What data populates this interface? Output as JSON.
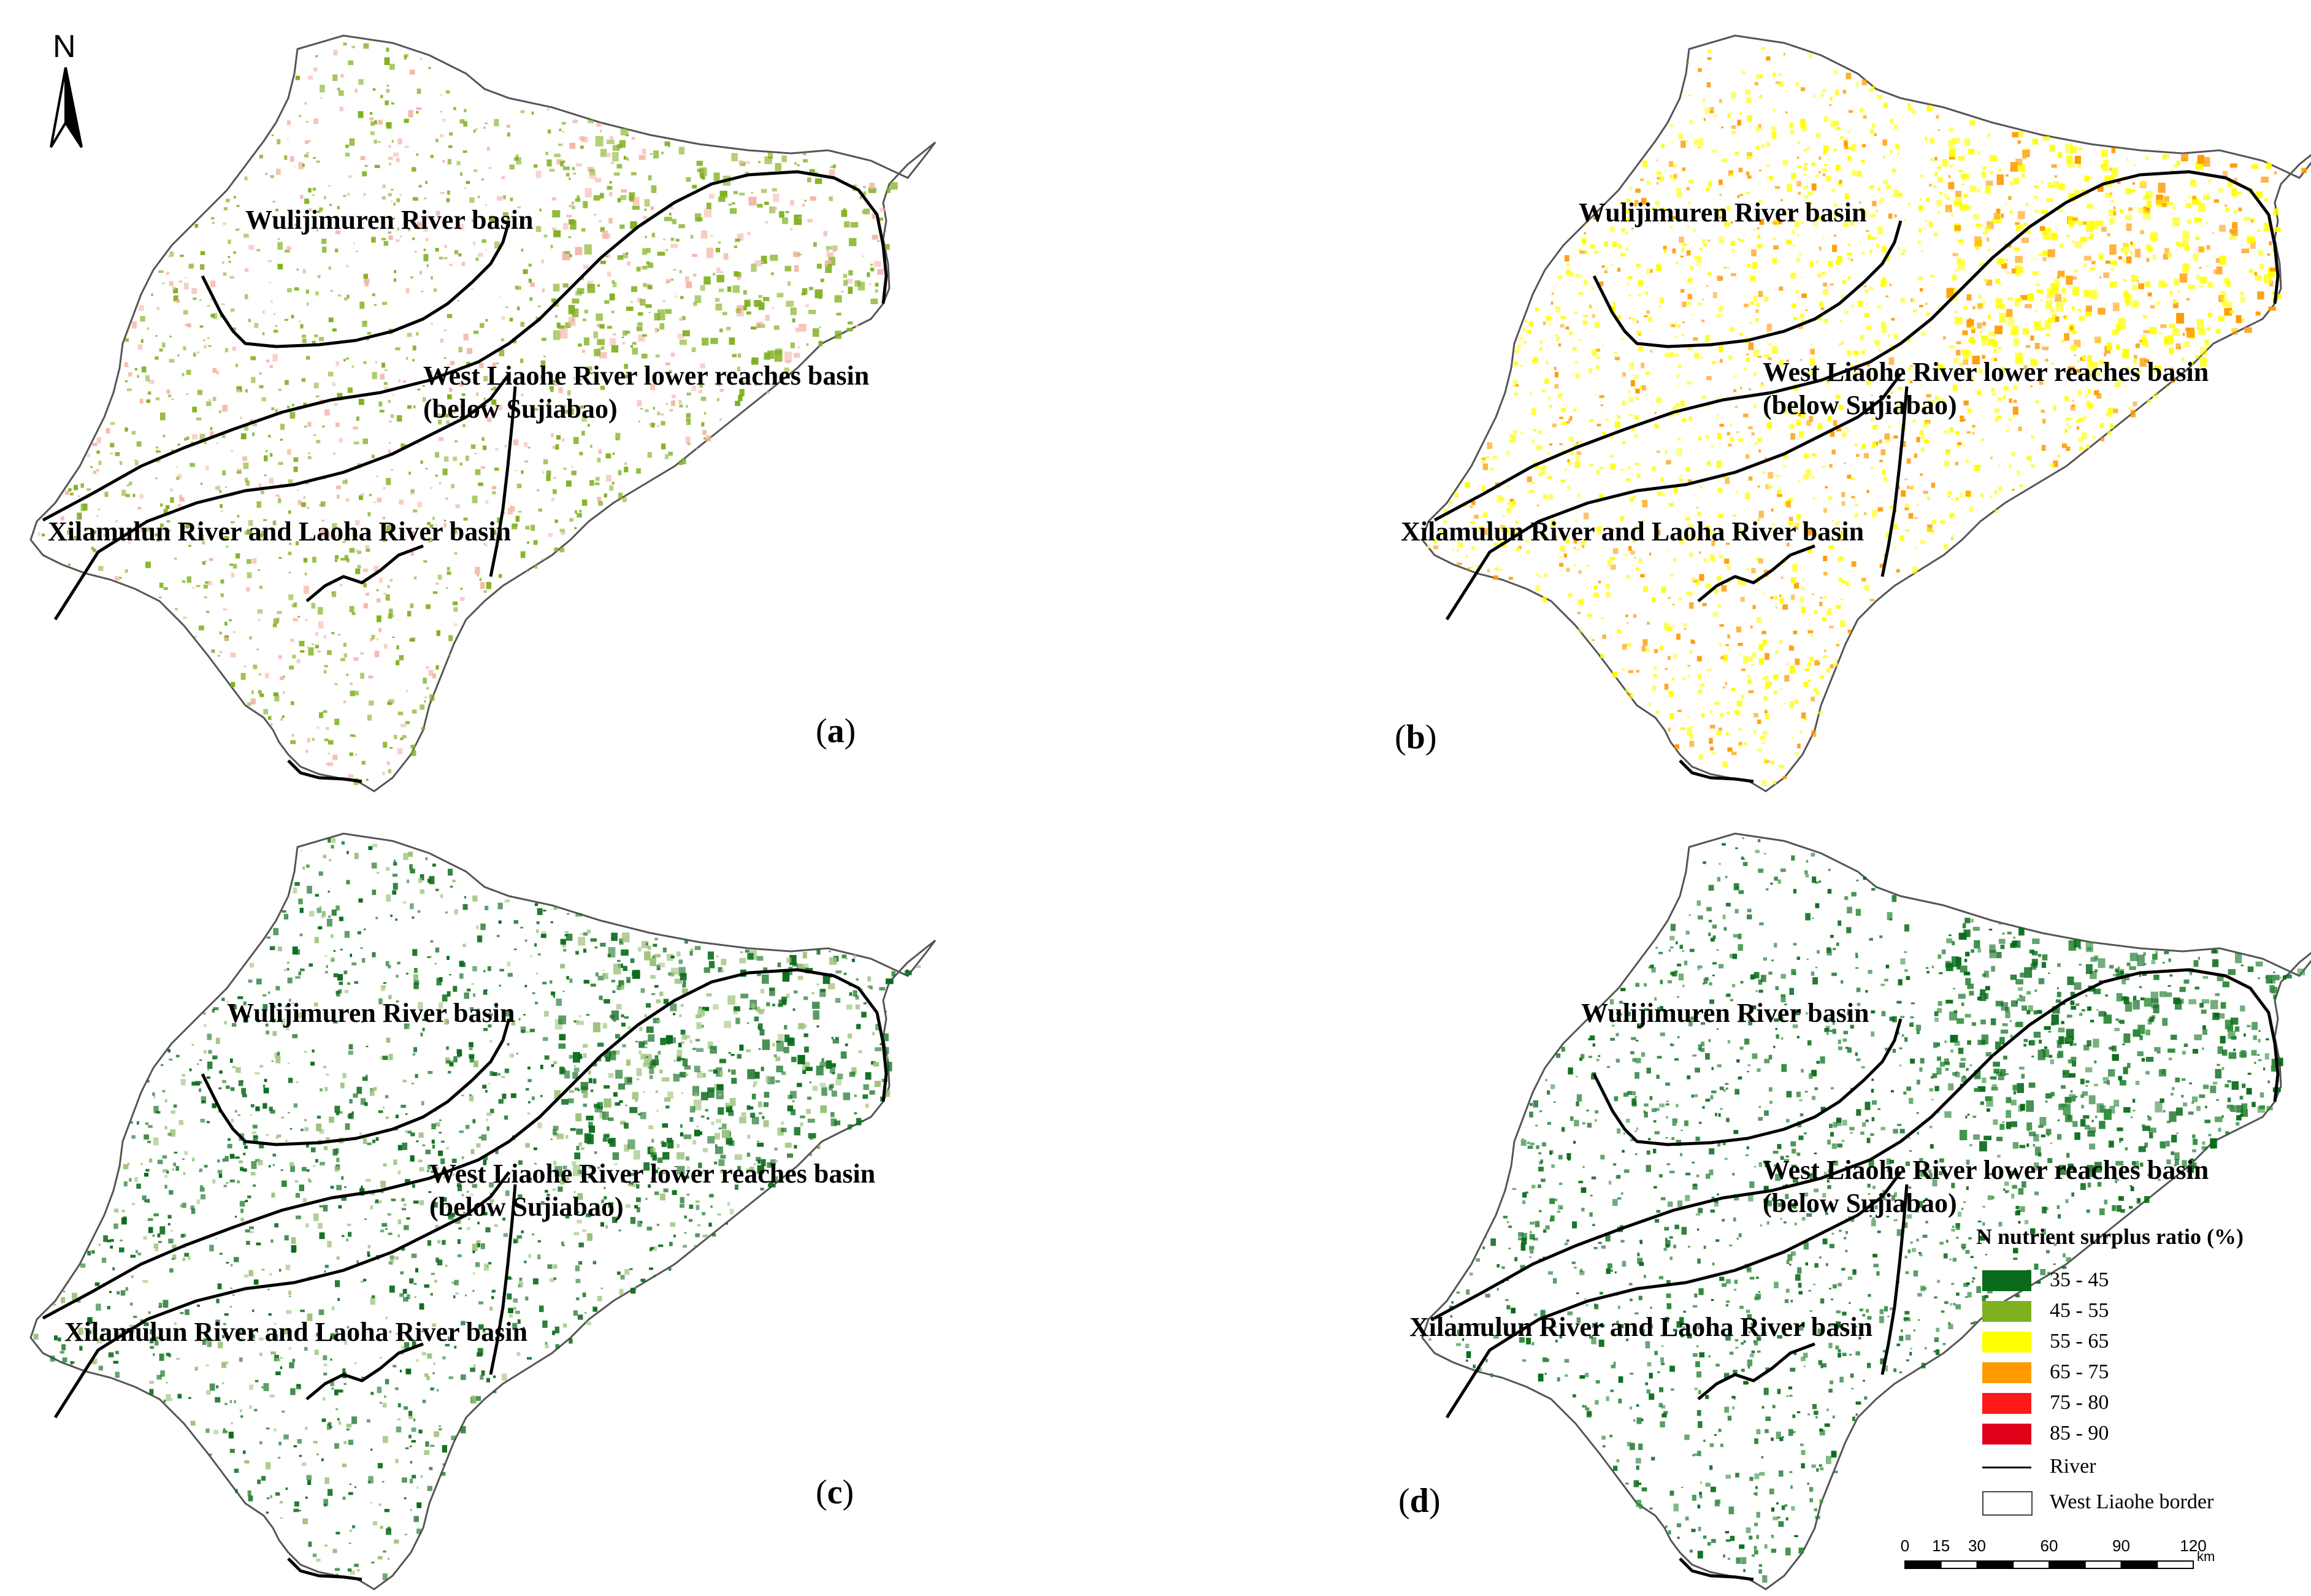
{
  "north_arrow": {
    "letter": "N"
  },
  "basins": {
    "wulijimuren": "Wulijimuren River basin",
    "west_liaohe_line1": "West Liaohe River lower reaches basin",
    "west_liaohe_line2": "(below Sujiabao)",
    "xilamulun": "Xilamulun River and Laoha River basin"
  },
  "panels": [
    {
      "id": "a",
      "letter": "a",
      "dominant_class": "45 - 55"
    },
    {
      "id": "b",
      "letter": "b",
      "dominant_class": "55 - 65"
    },
    {
      "id": "c",
      "letter": "c",
      "dominant_class": "35 - 45"
    },
    {
      "id": "d",
      "letter": "d",
      "dominant_class": "35 - 45"
    }
  ],
  "legend": {
    "title": "N nutrient surplus ratio (%)",
    "classes": [
      {
        "label": "35 - 45",
        "color": "#0a6b1a"
      },
      {
        "label": "45 - 55",
        "color": "#7fb01e"
      },
      {
        "label": "55 - 65",
        "color": "#ffff00"
      },
      {
        "label": "65 - 75",
        "color": "#ff9a00"
      },
      {
        "label": "75 - 80",
        "color": "#ff1a1a"
      },
      {
        "label": "85 - 90",
        "color": "#e0001a"
      }
    ],
    "river_label": "River",
    "border_label": "West Liaohe border"
  },
  "scale_bar": {
    "ticks": [
      "0",
      "15",
      "30",
      "60",
      "90",
      "120"
    ],
    "unit": "km"
  }
}
